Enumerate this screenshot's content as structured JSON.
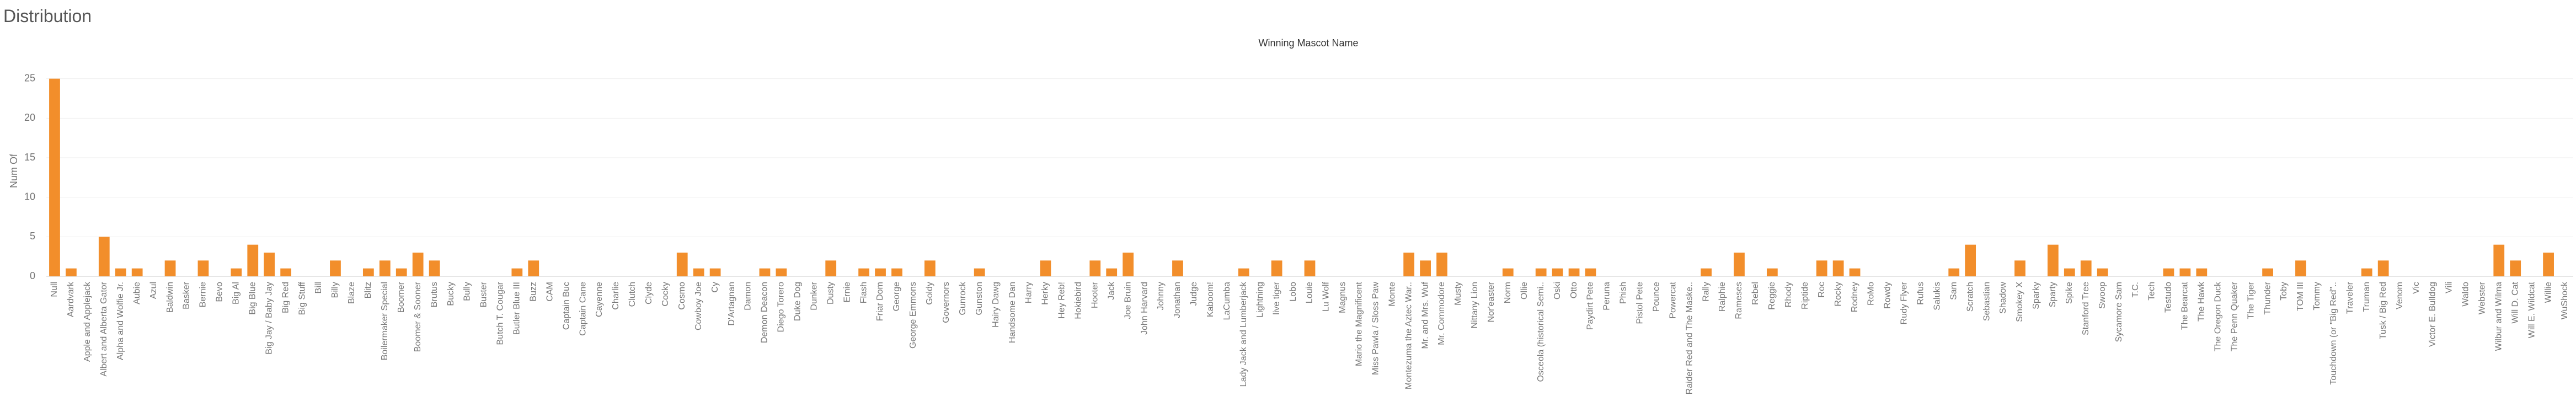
{
  "chart_data": {
    "type": "bar",
    "title": "Distribution",
    "header": "Winning Mascot Name",
    "y_label": "Num Of",
    "color": "#f28e2b",
    "grid": true,
    "ylim": [
      0,
      27
    ],
    "yticks": [
      0,
      5,
      10,
      15,
      20,
      25
    ],
    "categories": [
      "Null",
      "Aardvark",
      "Apple and Applejack",
      "Albert and Alberta Gator",
      "Alpha and Wolfie Jr.",
      "Aubie",
      "Azul",
      "Baldwin",
      "Basker",
      "Bernie",
      "Bevo",
      "Big Al",
      "Big Blue",
      "Big Jay / Baby Jay",
      "Big Red",
      "Big Stuff",
      "Bill",
      "Billy",
      "Blaze",
      "Blitz",
      "Boilermaker Special",
      "Boomer",
      "Boomer & Sooner",
      "Brutus",
      "Bucky",
      "Bully",
      "Buster",
      "Butch T. Cougar",
      "Butler Blue III",
      "Buzz",
      "CAM",
      "Captain Buc",
      "Captain Cane",
      "Cayenne",
      "Charlie",
      "Clutch",
      "Clyde",
      "Cocky",
      "Cosmo",
      "Cowboy Joe",
      "Cy",
      "D'Artagnan",
      "Damon",
      "Demon Deacon",
      "Diego Torero",
      "Duke Dog",
      "Dunker",
      "Dusty",
      "Ernie",
      "Flash",
      "Friar Dom",
      "George",
      "George Emmons",
      "Goldy",
      "Governors",
      "Gunrock",
      "Gunston",
      "Hairy Dawg",
      "Handsome Dan",
      "Harry",
      "Herky",
      "Hey Reb!",
      "Hokiebird",
      "Hooter",
      "Jack",
      "Joe Bruin",
      "John Harvard",
      "Johnny",
      "Jonathan",
      "Judge",
      "Kaboom!",
      "LaCumba",
      "Lady Jack and Lumberjack",
      "Lightning",
      "live tiger",
      "Lobo",
      "Louie",
      "Lu Wolf",
      "Magnus",
      "Mario the Magnificent",
      "Miss Pawla / Sloss Paw",
      "Monte",
      "Montezuma the Aztec War..",
      "Mr. and Mrs. Wuf",
      "Mr. Commodore",
      "Musty",
      "Nittany Lion",
      "Nor'easter",
      "Norm",
      "Ollie",
      "Osceola (historical Semi..",
      "Oski",
      "Otto",
      "Paydirt Pete",
      "Peruna",
      "Phish",
      "Pistol Pete",
      "Pounce",
      "Powercat",
      "Raider Red and The Maske..",
      "Rally",
      "Ralphie",
      "Rameses",
      "Rebel",
      "Reggie",
      "Rhody",
      "Riptide",
      "Roc",
      "Rocky",
      "Rodney",
      "RoMo",
      "Rowdy",
      "Rudy Flyer",
      "Rufus",
      "Salukis",
      "Sam",
      "Scratch",
      "Sebastian",
      "Shadow",
      "Smokey X",
      "Sparky",
      "Sparty",
      "Spike",
      "Stanford Tree",
      "Swoop",
      "Sycamore Sam",
      "T.C.",
      "Tech",
      "Testudo",
      "The Bearcat",
      "The Hawk",
      "The Oregon Duck",
      "The Penn Quaker",
      "The Tiger",
      "Thunder",
      "Toby",
      "TOM III",
      "Tommy",
      "Touchdown (or \"Big Red\"..",
      "Traveler",
      "Truman",
      "Tusk / Big Red",
      "Venom",
      "Vic",
      "Victor E. Bulldog",
      "Vili",
      "Waldo",
      "Webster",
      "Wilbur and Wilma",
      "Will D. Cat",
      "Will E. Wildcat",
      "Willie",
      "WuShock"
    ],
    "values": [
      25,
      1,
      0,
      5,
      1,
      1,
      0,
      2,
      0,
      2,
      0,
      1,
      4,
      3,
      1,
      0,
      0,
      2,
      0,
      1,
      2,
      1,
      3,
      2,
      0,
      0,
      0,
      0,
      1,
      2,
      0,
      0,
      0,
      0,
      0,
      0,
      0,
      0,
      3,
      1,
      1,
      0,
      0,
      1,
      1,
      0,
      0,
      2,
      0,
      1,
      1,
      1,
      0,
      2,
      0,
      0,
      1,
      0,
      0,
      0,
      2,
      0,
      0,
      2,
      1,
      3,
      0,
      0,
      2,
      0,
      0,
      0,
      1,
      0,
      2,
      0,
      2,
      0,
      0,
      0,
      0,
      0,
      3,
      2,
      3,
      0,
      0,
      0,
      1,
      0,
      1,
      1,
      1,
      1,
      0,
      0,
      0,
      0,
      0,
      0,
      1,
      0,
      3,
      0,
      1,
      0,
      0,
      2,
      2,
      1,
      0,
      0,
      0,
      0,
      0,
      1,
      4,
      0,
      0,
      2,
      0,
      4,
      1,
      2,
      1,
      0,
      0,
      0,
      1,
      1,
      1,
      0,
      0,
      0,
      1,
      0,
      2,
      0,
      0,
      0,
      1,
      2,
      0,
      0,
      0,
      0,
      0,
      0,
      4,
      2,
      0,
      3,
      0
    ]
  }
}
